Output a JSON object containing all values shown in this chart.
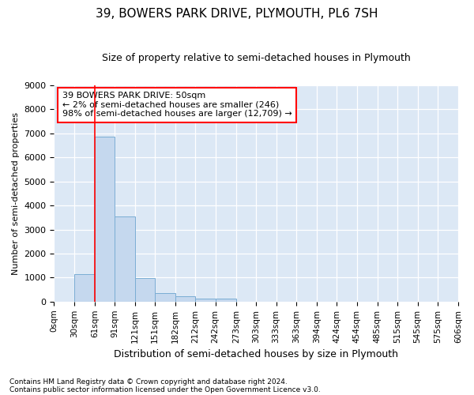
{
  "title": "39, BOWERS PARK DRIVE, PLYMOUTH, PL6 7SH",
  "subtitle": "Size of property relative to semi-detached houses in Plymouth",
  "xlabel": "Distribution of semi-detached houses by size in Plymouth",
  "ylabel": "Number of semi-detached properties",
  "bar_color": "#c5d8ee",
  "bar_edge_color": "#7aadd4",
  "background_color": "#dce8f5",
  "grid_color": "#ffffff",
  "fig_background": "#ffffff",
  "annotation_text": "39 BOWERS PARK DRIVE: 50sqm\n← 2% of semi-detached houses are smaller (246)\n98% of semi-detached houses are larger (12,709) →",
  "red_line_x": 61,
  "bin_edges": [
    0,
    30,
    61,
    91,
    121,
    151,
    182,
    212,
    242,
    273,
    303,
    333,
    363,
    394,
    424,
    454,
    485,
    515,
    545,
    575,
    606
  ],
  "bar_heights": [
    0,
    1130,
    6850,
    3560,
    980,
    350,
    220,
    130,
    110,
    0,
    0,
    0,
    0,
    0,
    0,
    0,
    0,
    0,
    0,
    0
  ],
  "ylim": [
    0,
    9000
  ],
  "yticks": [
    0,
    1000,
    2000,
    3000,
    4000,
    5000,
    6000,
    7000,
    8000,
    9000
  ],
  "footnote1": "Contains HM Land Registry data © Crown copyright and database right 2024.",
  "footnote2": "Contains public sector information licensed under the Open Government Licence v3.0."
}
